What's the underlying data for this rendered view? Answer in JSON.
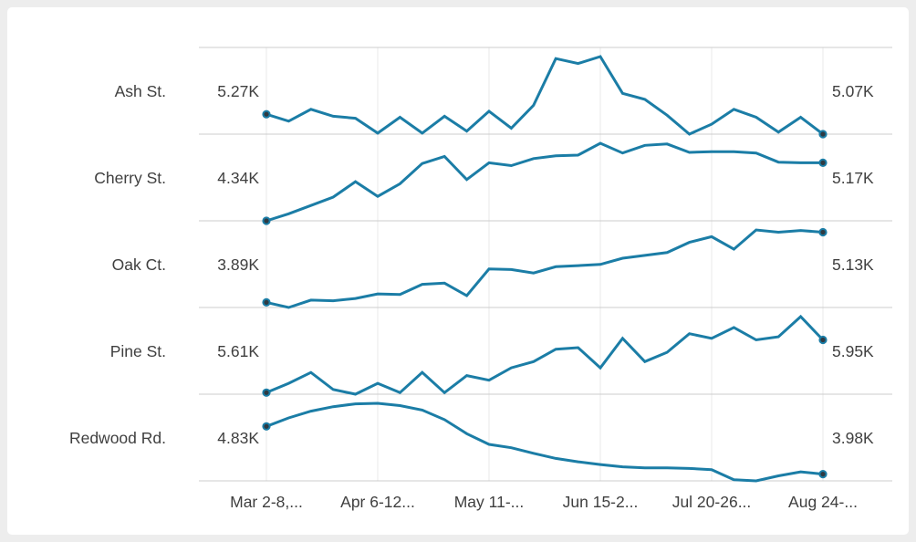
{
  "theme": {
    "page_background": "#ededed",
    "card_background": "#ffffff",
    "line_color": "#1b7da6",
    "dot_fill": "#2f3a42",
    "grid_horizontal": "#cccccc",
    "grid_vertical": "#e8e8e8",
    "text_color": "#3f3f3f"
  },
  "chart_data": {
    "type": "line",
    "variant": "small-multiple-sparklines",
    "grid": "on",
    "legend": "none",
    "n_points": 26,
    "x_unit": "week",
    "x_tick_labels": [
      "Mar 2-8,...",
      "Apr 6-12...",
      "May 11-...",
      "Jun 15-2...",
      "Jul 20-26...",
      "Aug 24-..."
    ],
    "y_scaling": "each series normalized to its own min-max within its row band",
    "series": [
      {
        "name": "Ash St.",
        "first_value_label": "5.27K",
        "last_value_label": "5.07K",
        "values_k": [
          5.27,
          5.2,
          5.32,
          5.25,
          5.23,
          5.08,
          5.24,
          5.08,
          5.25,
          5.1,
          5.3,
          5.13,
          5.36,
          5.83,
          5.78,
          5.85,
          5.48,
          5.42,
          5.26,
          5.07,
          5.17,
          5.32,
          5.24,
          5.09,
          5.24,
          5.07
        ]
      },
      {
        "name": "Cherry St.",
        "first_value_label": "4.34K",
        "last_value_label": "5.17K",
        "values_k": [
          4.34,
          4.44,
          4.56,
          4.68,
          4.9,
          4.69,
          4.87,
          5.16,
          5.26,
          4.93,
          5.17,
          5.13,
          5.23,
          5.27,
          5.28,
          5.45,
          5.31,
          5.42,
          5.44,
          5.32,
          5.33,
          5.33,
          5.31,
          5.18,
          5.17,
          5.17
        ]
      },
      {
        "name": "Oak Ct.",
        "first_value_label": "3.89K",
        "last_value_label": "5.13K",
        "values_k": [
          3.89,
          3.8,
          3.93,
          3.92,
          3.96,
          4.04,
          4.03,
          4.21,
          4.23,
          4.01,
          4.48,
          4.47,
          4.41,
          4.52,
          4.54,
          4.56,
          4.67,
          4.72,
          4.77,
          4.95,
          5.05,
          4.83,
          5.17,
          5.13,
          5.16,
          5.13
        ]
      },
      {
        "name": "Pine St.",
        "first_value_label": "5.61K",
        "last_value_label": "5.95K",
        "values_k": [
          5.61,
          5.67,
          5.74,
          5.63,
          5.6,
          5.67,
          5.61,
          5.74,
          5.61,
          5.72,
          5.69,
          5.77,
          5.81,
          5.89,
          5.9,
          5.77,
          5.96,
          5.81,
          5.87,
          5.99,
          5.96,
          6.03,
          5.95,
          5.97,
          6.1,
          5.95
        ]
      },
      {
        "name": "Redwood Rd.",
        "first_value_label": "4.83K",
        "last_value_label": "3.98K",
        "values_k": [
          4.83,
          4.98,
          5.1,
          5.18,
          5.23,
          5.24,
          5.2,
          5.12,
          4.95,
          4.7,
          4.51,
          4.45,
          4.35,
          4.26,
          4.2,
          4.15,
          4.11,
          4.09,
          4.09,
          4.08,
          4.06,
          3.88,
          3.86,
          3.95,
          4.02,
          3.98
        ]
      }
    ]
  }
}
